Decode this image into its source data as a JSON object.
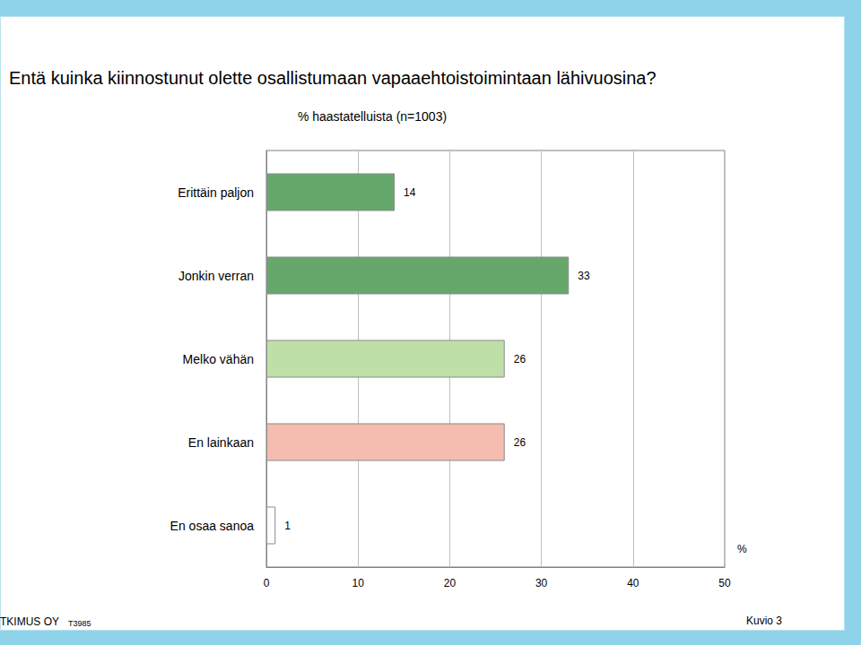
{
  "chart_data": {
    "type": "bar",
    "orientation": "horizontal",
    "title": "Entä kuinka kiinnostunut olette osallistumaan vapaaehtoistoimintaan lähivuosina?",
    "subtitle": "% haastatelluista (n=1003)",
    "categories": [
      "Erittäin paljon",
      "Jonkin verran",
      "Melko vähän",
      "En lainkaan",
      "En osaa sanoa"
    ],
    "values": [
      14,
      33,
      26,
      26,
      1
    ],
    "colors": [
      "#66a86c",
      "#66a86c",
      "#bfdfa8",
      "#f4bdb0",
      "#ffffff"
    ],
    "xlabel": "%",
    "xlim": [
      0,
      50
    ],
    "xticks": [
      0,
      10,
      20,
      30,
      40,
      50
    ],
    "grid": true,
    "data_labels": true,
    "annotations": [
      "TKIMUS OY",
      "T3985",
      "Kuvio 3"
    ]
  }
}
